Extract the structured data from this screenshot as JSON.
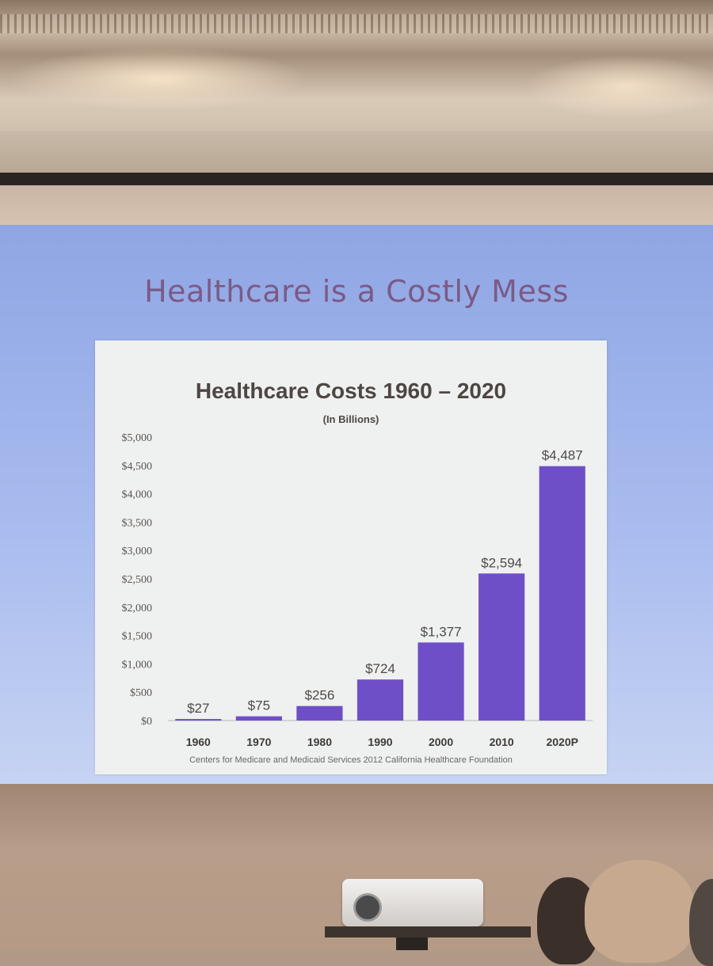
{
  "slide": {
    "title": "Healthcare is a Costly Mess"
  },
  "chart_data": {
    "type": "bar",
    "title": "Healthcare Costs 1960 – 2020",
    "subtitle": "(In Billions)",
    "categories": [
      "1960",
      "1970",
      "1980",
      "1990",
      "2000",
      "2010",
      "2020P"
    ],
    "values": [
      27,
      75,
      256,
      724,
      1377,
      2594,
      4487
    ],
    "data_labels": [
      "$27",
      "$75",
      "$256",
      "$724",
      "$1,377",
      "$2,594",
      "$4,487"
    ],
    "y_ticks": [
      0,
      500,
      1000,
      1500,
      2000,
      2500,
      3000,
      3500,
      4000,
      4500,
      5000
    ],
    "y_tick_labels": [
      "$0",
      "$500",
      "$1,000",
      "$1,500",
      "$2,000",
      "$2,500",
      "$3,000",
      "$3,500",
      "$4,000",
      "$4,500",
      "$5,000"
    ],
    "ylim": [
      0,
      5000
    ],
    "xlabel": "",
    "ylabel": "",
    "grid": false,
    "bar_color": "#6f4fc7",
    "source": "Centers for Medicare and Medicaid Services 2012 California Healthcare Foundation"
  }
}
